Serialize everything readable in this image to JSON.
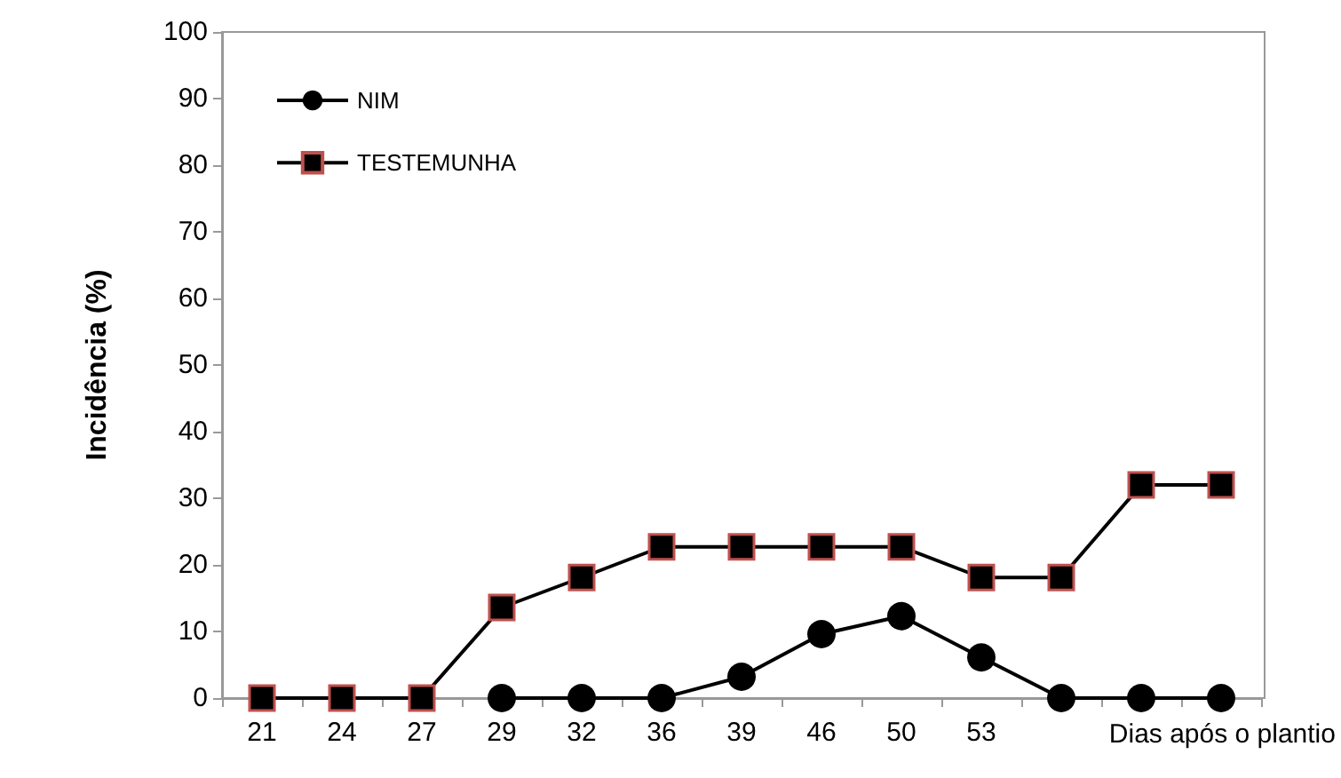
{
  "chart_data": {
    "type": "line",
    "ylabel": "Incidência (%)",
    "xlabel": "Dias após o plantio",
    "categories": [
      "21",
      "24",
      "27",
      "29",
      "32",
      "36",
      "39",
      "46",
      "50",
      "53",
      null,
      null,
      null
    ],
    "series": [
      {
        "name": "NIM",
        "color": "#000000",
        "marker": "circle",
        "values": [
          null,
          null,
          null,
          0,
          0,
          0,
          3.2,
          9.6,
          12.3,
          6.1,
          0,
          0,
          0
        ]
      },
      {
        "name": "TESTEMUNHA",
        "color": "#000000",
        "marker": "square",
        "values": [
          0,
          0,
          0,
          13.6,
          18.1,
          22.7,
          22.7,
          22.7,
          22.7,
          18.1,
          18.1,
          32,
          32
        ]
      }
    ],
    "ylim": [
      0,
      100
    ],
    "yticks": [
      0,
      10,
      20,
      30,
      40,
      50,
      60,
      70,
      80,
      90,
      100
    ],
    "grid": false,
    "legend": "top left",
    "line_style": "solid"
  }
}
